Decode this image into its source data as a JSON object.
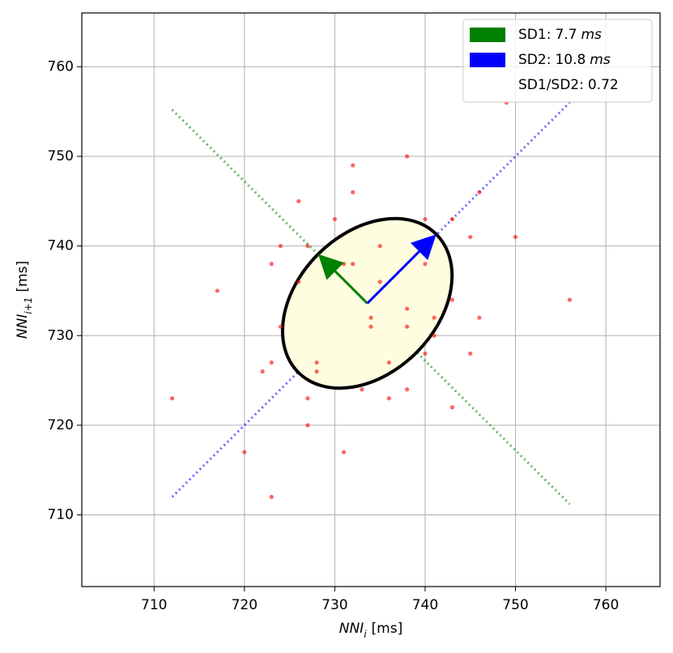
{
  "chart_data": {
    "type": "poincare",
    "x_label": {
      "base": "NNI",
      "sub": "i",
      "unit": "[ms]"
    },
    "y_label": {
      "base": "NNI",
      "sub": "i+1",
      "unit": "[ms]"
    },
    "xlim": [
      702,
      766
    ],
    "ylim": [
      702,
      766
    ],
    "xticks": [
      710,
      720,
      730,
      740,
      750,
      760
    ],
    "yticks": [
      710,
      720,
      730,
      740,
      750,
      760
    ],
    "grid": true,
    "points": {
      "color": "#ff0000",
      "x": [
        712,
        717,
        720,
        723,
        722,
        723,
        724,
        723,
        724,
        726,
        726,
        727,
        727,
        727,
        728,
        728,
        730,
        731,
        732,
        731,
        732,
        732,
        733,
        734,
        734,
        735,
        735,
        736,
        736,
        738,
        738,
        738,
        738,
        740,
        740,
        740,
        741,
        741,
        743,
        743,
        743,
        745,
        745,
        746,
        746,
        749,
        750,
        756
      ],
      "y": [
        723,
        735,
        717,
        712,
        726,
        727,
        731,
        738,
        740,
        745,
        736,
        740,
        723,
        720,
        727,
        726,
        743,
        738,
        738,
        717,
        749,
        746,
        724,
        732,
        731,
        740,
        736,
        727,
        723,
        750,
        733,
        731,
        724,
        743,
        738,
        728,
        730,
        732,
        734,
        743,
        722,
        741,
        728,
        746,
        732,
        756,
        741,
        734
      ]
    },
    "ellipse": {
      "center": [
        733.6,
        733.6
      ],
      "fill": "#fffde0",
      "stroke": "#000000"
    },
    "sd1": {
      "label": "SD1:",
      "value": 7.7,
      "unit": "ms",
      "color": "#008000"
    },
    "sd2": {
      "label": "SD2:",
      "value": 10.8,
      "unit": "ms",
      "color": "#0000ff"
    },
    "ratio": {
      "label": "SD1/SD2:",
      "value": 0.72
    },
    "legend": "upper right"
  }
}
